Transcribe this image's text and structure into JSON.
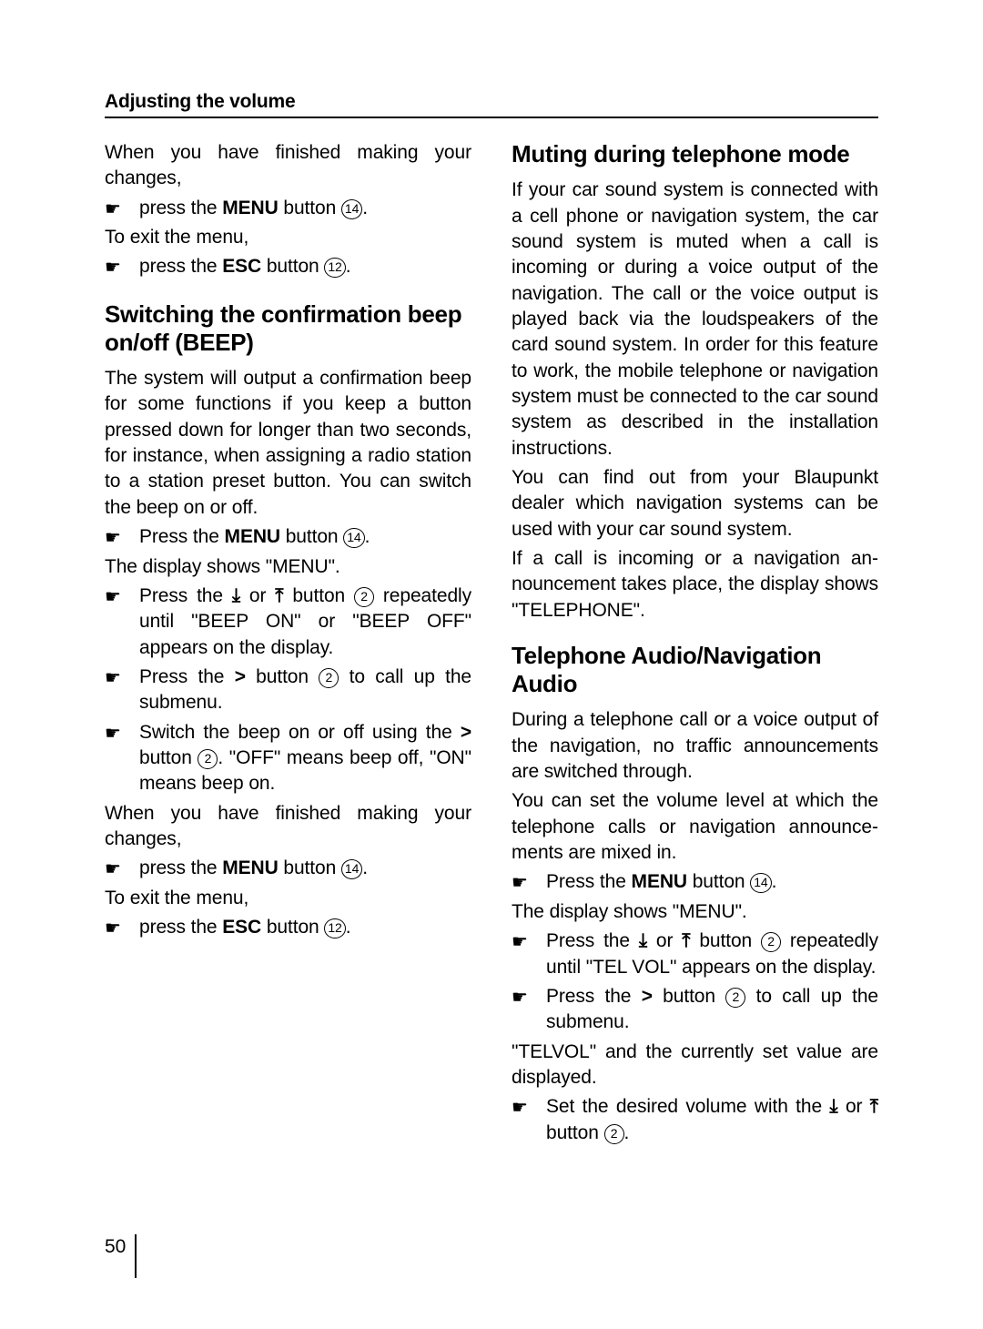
{
  "section_title": "Adjusting the volume",
  "page_number": "50",
  "left": {
    "intro": "When you have finished making your chang­es,",
    "step_menu_pre": "press the ",
    "menu_word": "MENU",
    "step_menu_post": " button ",
    "btn14": "14",
    "exit_intro": "To exit the menu,",
    "step_esc_pre": "press the ",
    "esc_word": "ESC",
    "step_esc_post": " button ",
    "btn12": "12",
    "heading": "Switching the confirmation beep on/off (BEEP)",
    "para1": "The system will output a confirmation beep for some functions if you keep a button pressed down for longer than two seconds, for instance, when assigning a radio station to a station preset button. You can switch the beep on or off.",
    "step1_pre": "Press the ",
    "step1_post": " button ",
    "display_menu": "The display shows \"MENU\".",
    "step2_pre": "Press the ",
    "step2_mid1": " or ",
    "step2_mid2": " button ",
    "btn2": "2",
    "step2_post": " repeatedly until \"BEEP ON\" or \"BEEP OFF\" appears on the display.",
    "step3_pre": "Press the ",
    "step3_mid": " button ",
    "step3_post": " to call up the submenu.",
    "step4_pre": "Switch the beep on or off using the ",
    "step4_mid": " button ",
    "step4_post": ". \"OFF\" means beep off, \"ON\" means beep on.",
    "outro": "When you have finished making your chang­es,"
  },
  "right": {
    "heading1": "Muting during telephone mode",
    "para1": "If your car sound system is connected with a cell phone or navigation system, the car sound system is muted when a call is incom­ing or during a voice output of the naviga­tion. The call or the voice output is played back via the loudspeakers of the card sound system. In order for this feature to work, the mobile telephone or navigation system must be connected to the car sound system as described in the installation instructions.",
    "para2": "You can find out from your Blaupunkt dealer which navigation systems can be used with your car sound system.",
    "para3": "If a call is incoming or a navigation an­nouncement takes place, the display shows \"TELEPHONE\".",
    "heading2": "Telephone Audio/Navigation Audio",
    "para4": "During a telephone call or a voice output of the navigation, no traffic announcements are switched through.",
    "para5": "You can set the volume level at which the telephone calls or navigation announce­ments are mixed in.",
    "step1_pre": "Press the ",
    "menu_word": "MENU",
    "step1_post": " button ",
    "btn14": "14",
    "display_menu": "The display shows \"MENU\".",
    "step2_pre": "Press the ",
    "step2_mid1": " or ",
    "step2_mid2": " button ",
    "btn2": "2",
    "step2_post": " repeatedly until \"TEL VOL\" appears on the display.",
    "step3_pre": "Press the ",
    "step3_mid": " button ",
    "step3_post": " to call up the submenu.",
    "para6": "\"TELVOL\" and the currently set value are displayed.",
    "step4_pre": "Set the desired volume with the ",
    "step4_mid": " or ",
    "step4_post": " button "
  },
  "glyphs": {
    "hand": "☛",
    "down": "⤓",
    "up": "⤒",
    "right": ">"
  }
}
